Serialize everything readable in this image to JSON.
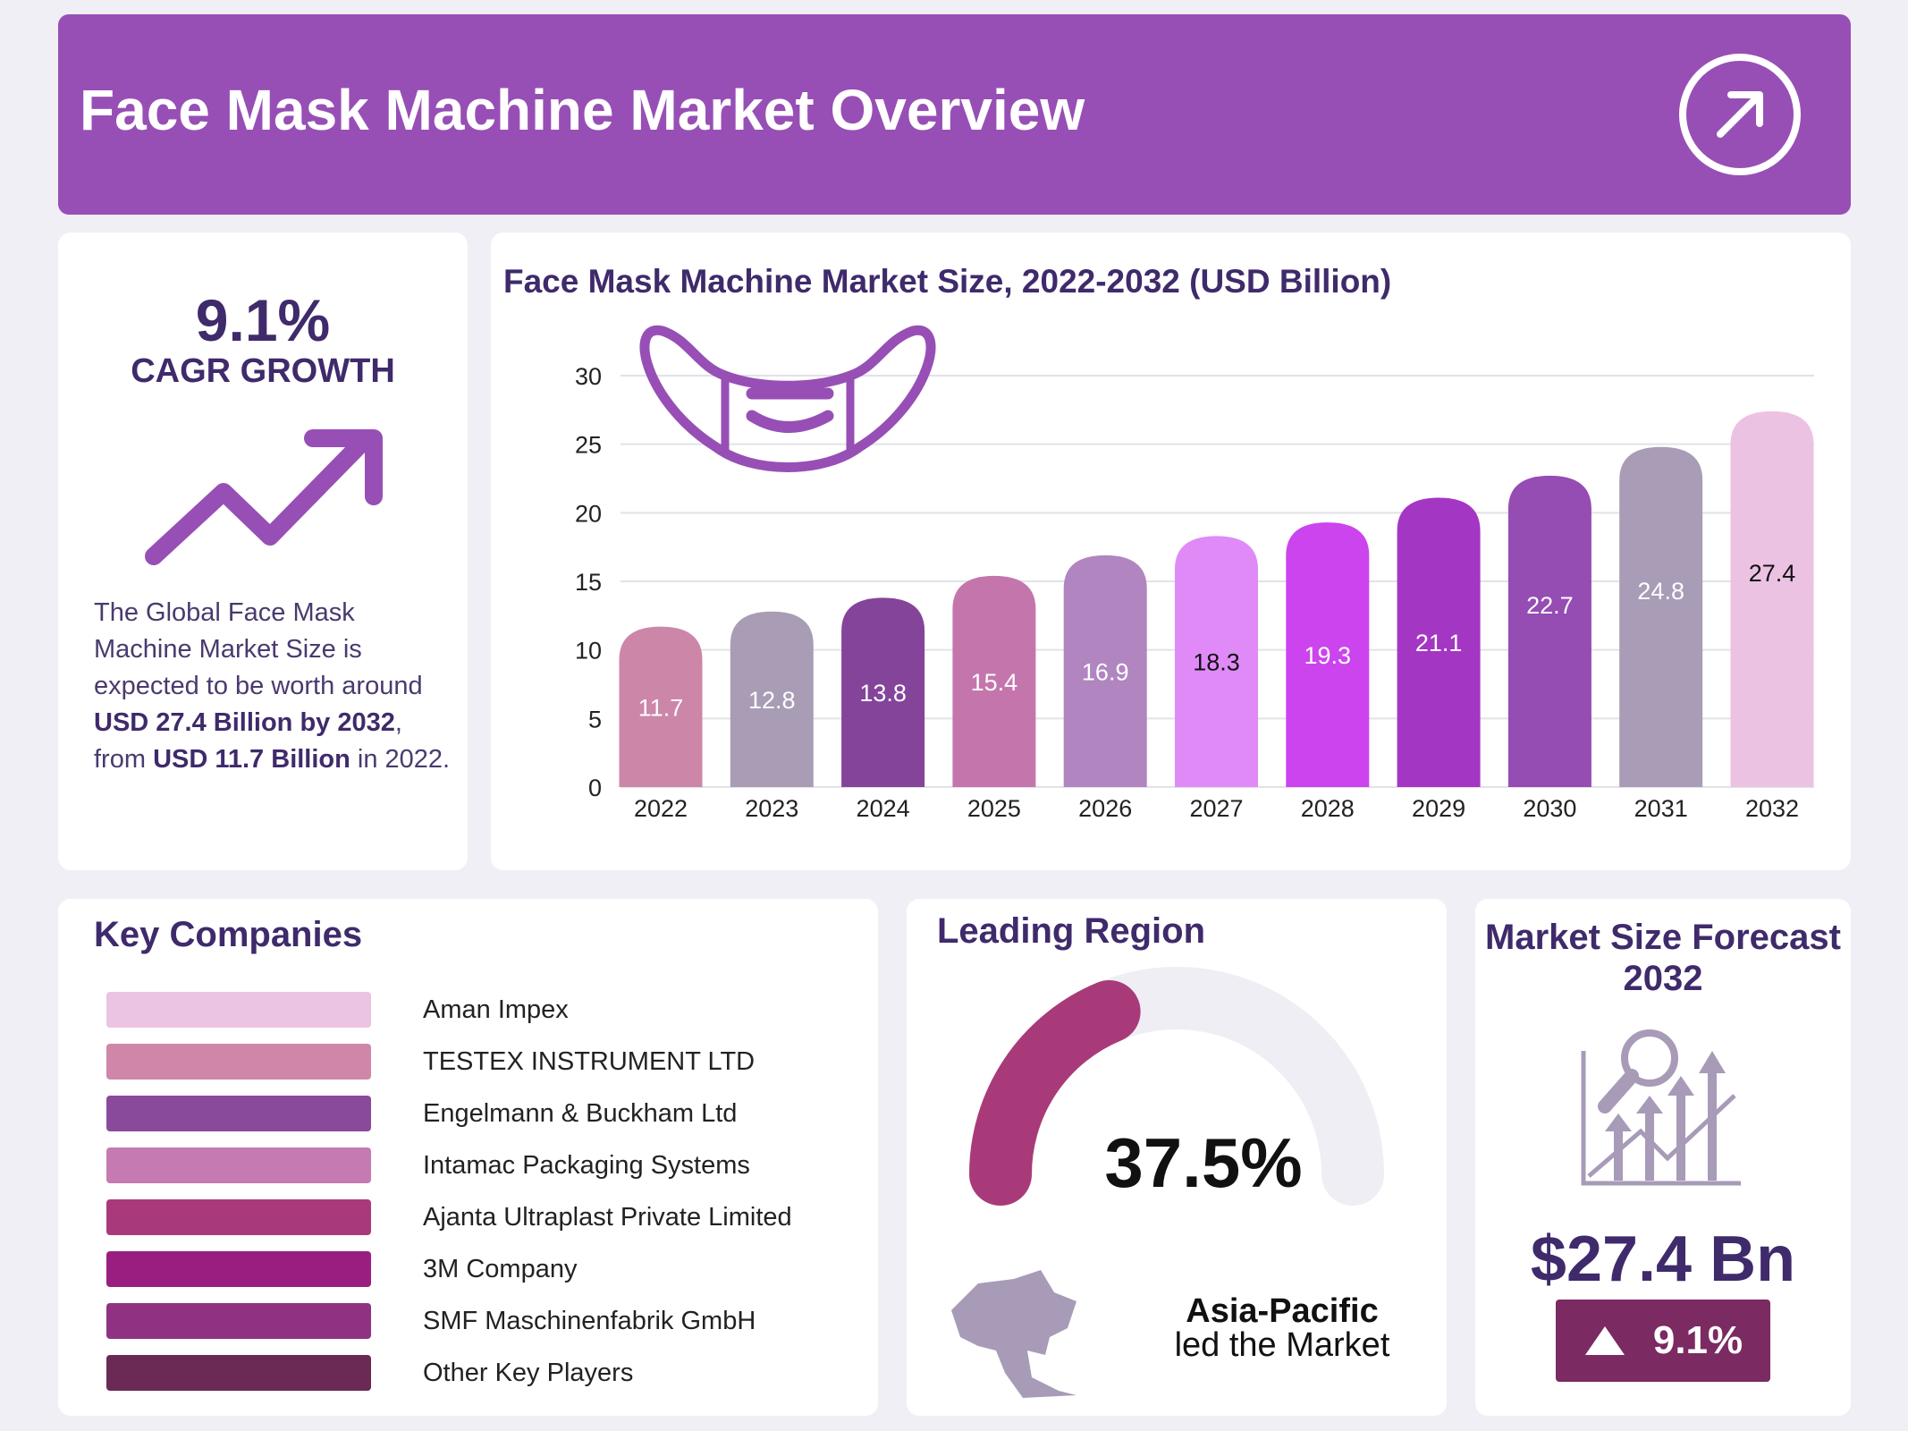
{
  "header": {
    "title": "Face Mask Machine Market Overview",
    "icon": "arrow-up-right-circle-icon"
  },
  "cagr": {
    "value": "9.1%",
    "label": "CAGR GROWTH",
    "desc": {
      "p1": "The Global Face Mask Machine Market Size is expected to be worth around ",
      "b1": "USD 27.4 Billion by 2032",
      "p2": ", from ",
      "b2": "USD 11.7 Billion",
      "p3": " in 2022."
    }
  },
  "chart_data": {
    "type": "bar",
    "title": "Face Mask Machine Market Size, 2022-2032 (USD Billion)",
    "categories": [
      "2022",
      "2023",
      "2024",
      "2025",
      "2026",
      "2027",
      "2028",
      "2029",
      "2030",
      "2031",
      "2032"
    ],
    "values": [
      11.7,
      12.8,
      13.8,
      15.4,
      16.9,
      18.3,
      19.3,
      21.1,
      22.7,
      24.8,
      27.4
    ],
    "colors": [
      "#cc86a8",
      "#a99cb5",
      "#84449a",
      "#c476ac",
      "#b085c0",
      "#e08af8",
      "#cc44ee",
      "#a436c4",
      "#954cb3",
      "#a99cb7",
      "#ecc2e2"
    ],
    "label_colors": [
      "#fff",
      "#fff",
      "#fff",
      "#fff",
      "#fff",
      "#111",
      "#fff",
      "#fff",
      "#fff",
      "#fff",
      "#111"
    ],
    "ylim": [
      0,
      30
    ],
    "yticks": [
      0,
      5,
      10,
      15,
      20,
      25,
      30
    ],
    "grid": true,
    "xlabel": "",
    "ylabel": ""
  },
  "companies": {
    "title": "Key Companies",
    "items": [
      {
        "name": "Aman Impex",
        "color": "#ebc3e3"
      },
      {
        "name": "TESTEX INSTRUMENT LTD",
        "color": "#cf86a9"
      },
      {
        "name": "Engelmann & Buckham Ltd",
        "color": "#8a4a9c"
      },
      {
        "name": "Intamac Packaging Systems",
        "color": "#c57bb1"
      },
      {
        "name": "Ajanta Ultraplast Private Limited",
        "color": "#a93a79"
      },
      {
        "name": "3M Company",
        "color": "#9a1e80"
      },
      {
        "name": "SMF Maschinenfabrik GmbH",
        "color": "#8f3282"
      },
      {
        "name": "Other Key Players",
        "color": "#6a2a55"
      }
    ]
  },
  "region": {
    "title": "Leading Region",
    "share": "37.5%",
    "share_fraction": 0.375,
    "name": "Asia-Pacific",
    "sub": "led the Market",
    "accent": "#a93a79"
  },
  "forecast": {
    "title": "Market Size Forecast 2032",
    "value": "$27.4 Bn",
    "growth": "9.1%"
  }
}
